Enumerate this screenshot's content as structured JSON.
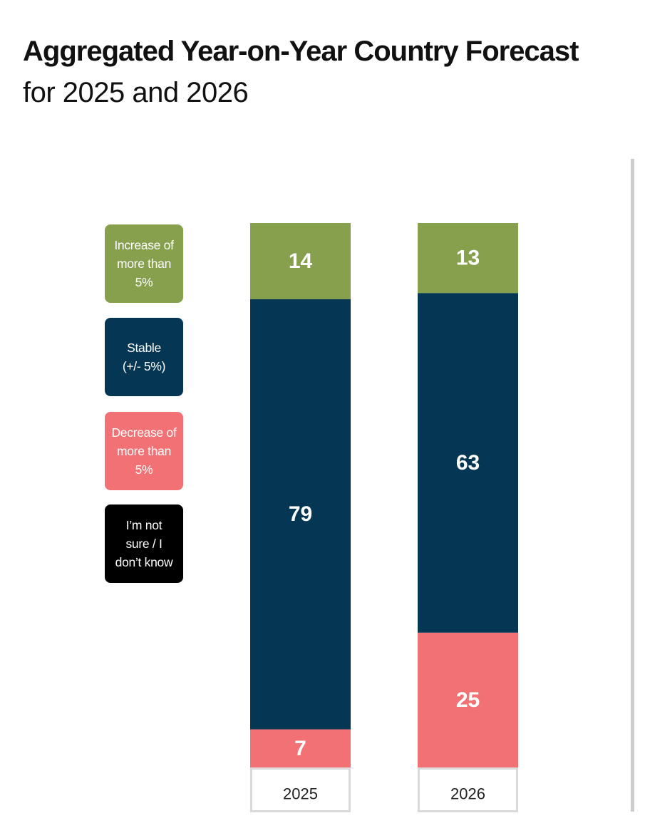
{
  "chart_data": {
    "type": "bar",
    "stacked": true,
    "title": "Aggregated Year-on-Year Country Forecast",
    "subtitle": "for 2025 and 2026",
    "categories": [
      "2025",
      "2026"
    ],
    "series": [
      {
        "name": "Increase of\nmore than\n5%",
        "color": "#86A04E",
        "values": [
          14,
          13
        ]
      },
      {
        "name": "Stable\n(+/- 5%)",
        "color": "#053754",
        "values": [
          79,
          63
        ]
      },
      {
        "name": "Decrease of\nmore than\n5%",
        "color": "#F27174",
        "values": [
          7,
          25
        ]
      },
      {
        "name": "I’m not\nsure / I\ndon’t know",
        "color": "#000000",
        "values": [
          0,
          0
        ]
      }
    ],
    "legend_position": "left",
    "grid": false
  }
}
